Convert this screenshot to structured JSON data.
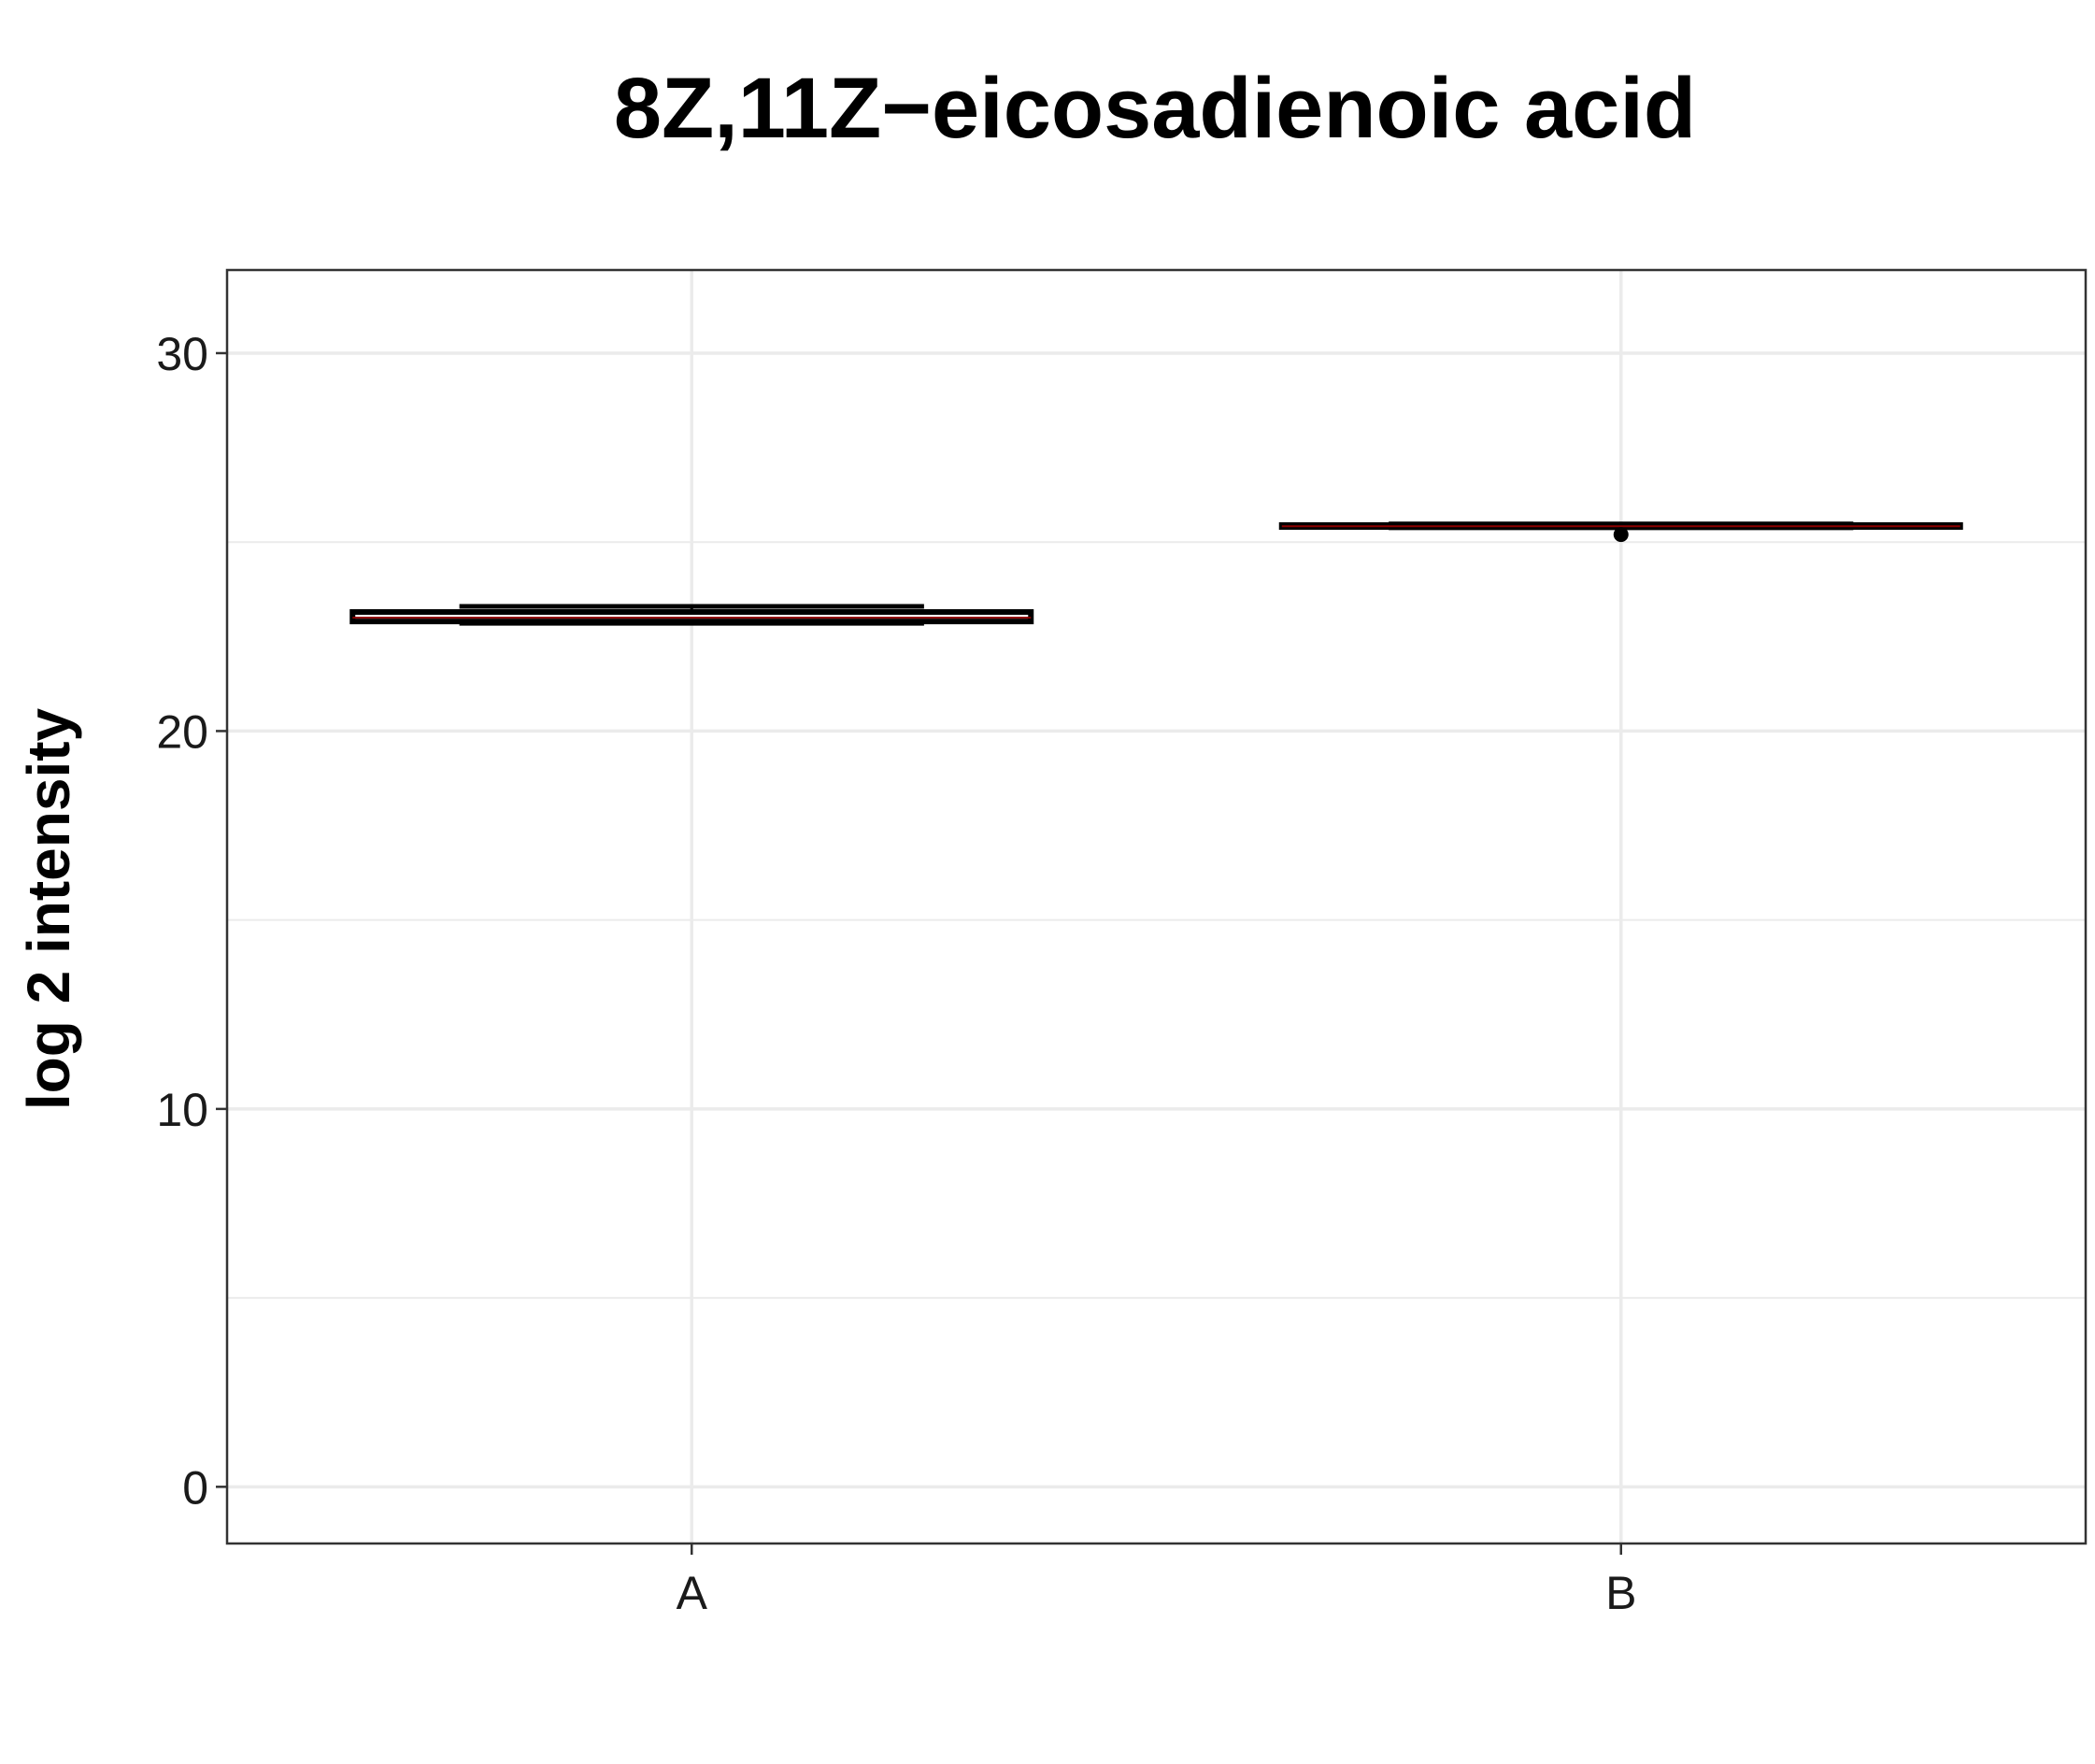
{
  "chart_data": {
    "type": "boxplot",
    "title": "8Z,11Z−eicosadienoic acid",
    "xlabel": "",
    "ylabel": "log 2 intensity",
    "categories": [
      "A",
      "B"
    ],
    "ylim": [
      -1.5,
      32.2
    ],
    "yticks": [
      0,
      10,
      20,
      30
    ],
    "grid": true,
    "colors": {
      "box_fill": "#ffffff",
      "box_line": "#000000",
      "median_line": "#8b0000",
      "grid": "#ebebeb",
      "panel_border": "#333333"
    },
    "boxes": [
      {
        "category": "A",
        "lower_whisker": 22.85,
        "q1": 22.9,
        "median": 23.0,
        "q3": 23.15,
        "upper_whisker": 23.3,
        "outliers": []
      },
      {
        "category": "B",
        "lower_whisker": 25.38,
        "q1": 25.4,
        "median": 25.42,
        "q3": 25.45,
        "upper_whisker": 25.48,
        "outliers": [
          25.2
        ]
      }
    ]
  }
}
